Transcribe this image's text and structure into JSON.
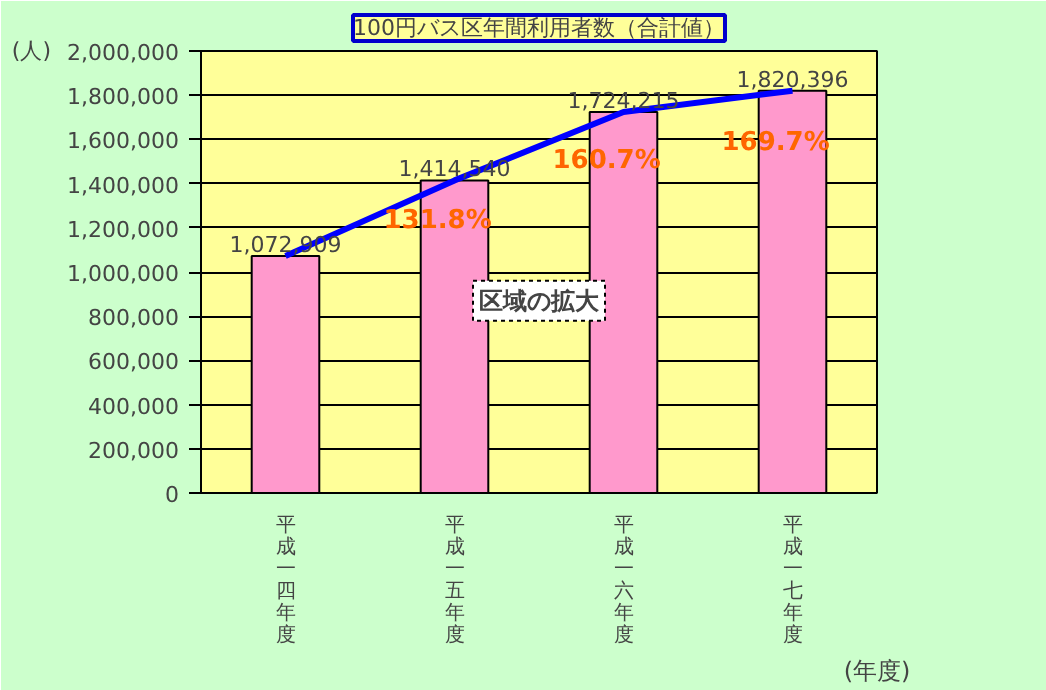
{
  "chart_data": {
    "type": "bar",
    "title": "100円バス区年間利用者数（合計値）",
    "ylabel": "(人)",
    "xlabel": "(年度)",
    "categories": [
      "平成一四年度",
      "平成一五年度",
      "平成一六年度",
      "平成一七年度"
    ],
    "series": [
      {
        "color": "#ff99cc",
        "values": [
          1072909,
          1414540,
          1724215,
          1820396
        ],
        "value_labels": [
          "1,072,909",
          "1,414,540",
          "1,724,215",
          "1,820,396"
        ]
      },
      {
        "type": "line",
        "color": "#0000ff",
        "values": [
          1072909,
          1414540,
          1724215,
          1820396
        ]
      }
    ],
    "ylim": [
      0,
      2000000
    ],
    "yticks": [
      {
        "value": 0,
        "label": "0"
      },
      {
        "value": 200000,
        "label": "200,000"
      },
      {
        "value": 400000,
        "label": "400,000"
      },
      {
        "value": 600000,
        "label": "600,000"
      },
      {
        "value": 800000,
        "label": "800,000"
      },
      {
        "value": 1000000,
        "label": "1,000,000"
      },
      {
        "value": 1200000,
        "label": "1,200,000"
      },
      {
        "value": 1400000,
        "label": "1,400,000"
      },
      {
        "value": 1600000,
        "label": "1,600,000"
      },
      {
        "value": 1800000,
        "label": "1,800,000"
      },
      {
        "value": 2000000,
        "label": "2,000,000"
      }
    ],
    "grid": "y",
    "annotations": [
      "131.8%",
      "160.7%",
      "169.7%",
      "区域の拡大"
    ]
  }
}
